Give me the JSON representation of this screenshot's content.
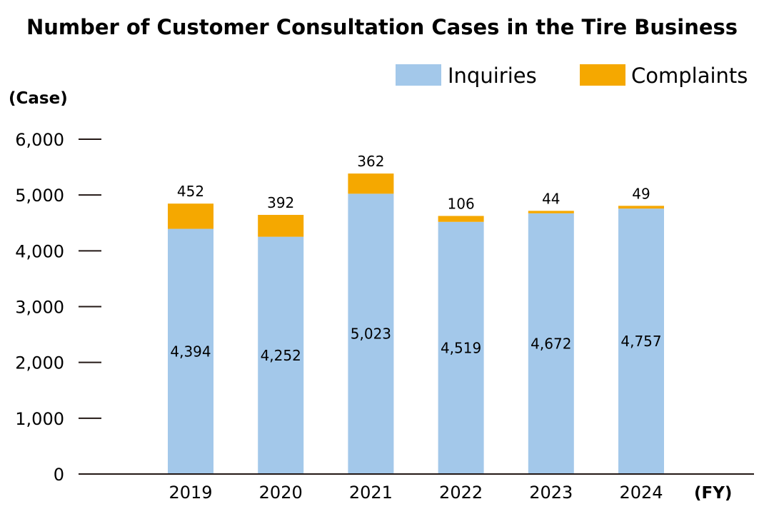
{
  "chart_data": {
    "type": "bar",
    "stacked": true,
    "title": "Number of Customer Consultation Cases in the Tire Business",
    "ylabel": "(Case)",
    "xlabel": "(FY)",
    "ylim": [
      0,
      6000
    ],
    "yticks": [
      0,
      1000,
      2000,
      3000,
      4000,
      5000,
      6000
    ],
    "ytick_labels": [
      "0",
      "1,000",
      "2,000",
      "3,000",
      "4,000",
      "5,000",
      "6,000"
    ],
    "categories": [
      "2019",
      "2020",
      "2021",
      "2022",
      "2023",
      "2024"
    ],
    "series": [
      {
        "name": "Inquiries",
        "color": "#a3c8ea",
        "values": [
          4394,
          4252,
          5023,
          4519,
          4672,
          4757
        ],
        "labels": [
          "4,394",
          "4,252",
          "5,023",
          "4,519",
          "4,672",
          "4,757"
        ]
      },
      {
        "name": "Complaints",
        "color": "#f5a800",
        "values": [
          452,
          392,
          362,
          106,
          44,
          49
        ],
        "labels": [
          "452",
          "392",
          "362",
          "106",
          "44",
          "49"
        ]
      }
    ],
    "legend_position": "top-right"
  }
}
